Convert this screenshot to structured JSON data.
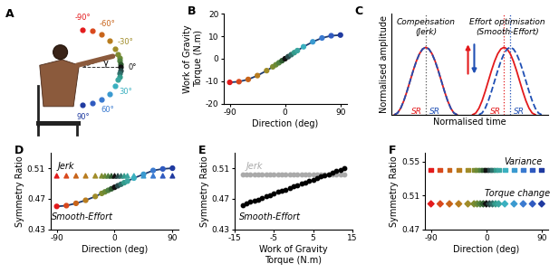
{
  "chart_data": [
    {
      "panel": "A",
      "type": "direction_diagram",
      "x": [
        -90,
        -75,
        -60,
        -45,
        -30,
        -20,
        -15,
        -10,
        -5,
        0,
        5,
        10,
        15,
        20,
        30,
        45,
        60,
        75,
        90
      ],
      "colors": [
        "#e31a1c",
        "#d9481c",
        "#c8641a",
        "#b87c1e",
        "#a08c28",
        "#7f8c30",
        "#6a8a36",
        "#4f8040",
        "#2f5a30",
        "#111111",
        "#2a4a4a",
        "#2f6f6a",
        "#339c8c",
        "#3aa6a0",
        "#3ab0c0",
        "#3a9ad0",
        "#3a7ad0",
        "#2f5ac0",
        "#1f3aa0"
      ],
      "direction_labels": [
        {
          "value": -90,
          "label": "-90°"
        },
        {
          "value": -60,
          "label": "-60°"
        },
        {
          "value": -30,
          "label": "-30°"
        },
        {
          "value": 0,
          "label": "0°"
        },
        {
          "value": 30,
          "label": "30°"
        },
        {
          "value": 60,
          "label": "60°"
        },
        {
          "value": 90,
          "label": "90°"
        }
      ],
      "angle_label": "γ"
    },
    {
      "panel": "B",
      "type": "line",
      "x": [
        -90,
        -75,
        -60,
        -45,
        -30,
        -20,
        -15,
        -10,
        -5,
        0,
        5,
        10,
        15,
        20,
        30,
        45,
        60,
        75,
        90
      ],
      "series": [
        {
          "values": [
            -10.5,
            -10.2,
            -9.2,
            -7.5,
            -5.3,
            -3.6,
            -2.7,
            -1.8,
            -0.9,
            0,
            0.9,
            1.8,
            2.7,
            3.6,
            5.3,
            7.5,
            9.2,
            10.2,
            10.5
          ],
          "colors": [
            "#e31a1c",
            "#d9481c",
            "#c8641a",
            "#b87c1e",
            "#a08c28",
            "#7f8c30",
            "#6a8a36",
            "#4f8040",
            "#2f5a30",
            "#111111",
            "#2a4a4a",
            "#2f6f6a",
            "#339c8c",
            "#3aa6a0",
            "#3ab0c0",
            "#3a9ad0",
            "#3a7ad0",
            "#2f5ac0",
            "#1f3aa0"
          ],
          "color": "#1f3a6e",
          "marker": "o",
          "line_style": "solid"
        }
      ],
      "xlabel": "Direction (deg)",
      "ylabel": "Work of Gravity\nTorque (N.m)",
      "xlim": [
        -100,
        100
      ],
      "xticks": [
        -90,
        0,
        90
      ],
      "ylim": [
        -20,
        20
      ],
      "yticks": [
        -20,
        -10,
        0,
        10,
        20
      ]
    },
    {
      "panel": "C",
      "type": "line",
      "tick_labels": false,
      "series": [
        {
          "x": [
            0,
            0.05,
            0.1,
            0.15,
            0.2,
            0.25,
            0.3,
            0.35,
            0.4,
            0.45,
            0.5,
            0.55,
            0.6,
            0.65,
            0.7,
            0.75,
            0.8,
            0.85,
            0.9,
            0.95,
            1.0
          ],
          "values": [
            0,
            0.0245,
            0.0955,
            0.2061,
            0.3455,
            0.5,
            0.6545,
            0.7939,
            0.9045,
            0.9755,
            1,
            0.9755,
            0.9045,
            0.7939,
            0.6545,
            0.5,
            0.3455,
            0.2061,
            0.0955,
            0.0245,
            0
          ],
          "color": "#e31a1c",
          "line_style": "solid"
        },
        {
          "x": [
            0,
            0.05,
            0.1,
            0.15,
            0.2,
            0.25,
            0.3,
            0.35,
            0.4,
            0.45,
            0.5,
            0.55,
            0.6,
            0.65,
            0.7,
            0.75,
            0.8,
            0.85,
            0.9,
            0.95,
            1.0
          ],
          "values": [
            0,
            0.0245,
            0.0955,
            0.2061,
            0.3455,
            0.5,
            0.6545,
            0.7939,
            0.9045,
            0.9755,
            1,
            0.9755,
            0.9045,
            0.7939,
            0.6545,
            0.5,
            0.3455,
            0.2061,
            0.0955,
            0.0245,
            0
          ],
          "color": "#1f4fb4",
          "line_style": "dashed"
        },
        {
          "x": [
            1.25,
            1.3,
            1.35,
            1.4,
            1.45,
            1.5,
            1.55,
            1.6,
            1.65,
            1.7,
            1.75,
            1.8,
            1.85,
            1.9,
            1.95,
            2.0,
            2.05,
            2.1,
            2.15,
            2.2,
            2.25
          ],
          "values": [
            0,
            0.0245,
            0.0955,
            0.2061,
            0.3455,
            0.5,
            0.6545,
            0.7939,
            0.9045,
            0.9755,
            1,
            0.9755,
            0.9045,
            0.7939,
            0.6545,
            0.5,
            0.3455,
            0.2061,
            0.0955,
            0.0245,
            0
          ],
          "color": "#e31a1c",
          "line_style": "solid"
        },
        {
          "x": [
            1.35,
            1.4,
            1.45,
            1.5,
            1.55,
            1.6,
            1.65,
            1.7,
            1.75,
            1.8,
            1.85,
            1.9,
            1.95,
            2.0,
            2.05,
            2.1,
            2.15,
            2.2,
            2.25,
            2.3,
            2.35
          ],
          "values": [
            0,
            0.0245,
            0.0955,
            0.2061,
            0.3455,
            0.5,
            0.6545,
            0.7939,
            0.9045,
            0.9755,
            1,
            0.9755,
            0.9045,
            0.7939,
            0.6545,
            0.5,
            0.3455,
            0.2061,
            0.0955,
            0.0245,
            0
          ],
          "color": "#1f4fb4",
          "line_style": "dashed"
        }
      ],
      "sr_lines": [
        {
          "x": 0.5,
          "color": "#555555"
        },
        {
          "x": 1.75,
          "color": "#e31a1c"
        },
        {
          "x": 1.85,
          "color": "#1f4fb4"
        }
      ],
      "annotations": [
        {
          "text": "Compensation\n(Jerk)",
          "x": 0.5,
          "y": 1.3
        },
        {
          "text": "Effort optimisation\n(Smooth-Effort)",
          "x": 1.8,
          "y": 1.3
        },
        {
          "text": "SR",
          "x": 0.36,
          "y": 0.05,
          "color": "#e31a1c"
        },
        {
          "text": "SR",
          "x": 0.64,
          "y": 0.05,
          "color": "#1f4fb4"
        },
        {
          "text": "SR",
          "x": 1.61,
          "y": 0.05,
          "color": "#e31a1c"
        },
        {
          "text": "SR",
          "x": 1.99,
          "y": 0.05,
          "color": "#1f4fb4"
        }
      ],
      "xlabel": "Normalised time",
      "ylabel": "Normalised amplitude",
      "xlim": [
        -0.05,
        2.45
      ],
      "ylim": [
        0,
        1.5
      ]
    },
    {
      "panel": "D",
      "type": "scatter",
      "x": [
        -90,
        -75,
        -60,
        -45,
        -30,
        -20,
        -15,
        -10,
        -5,
        0,
        5,
        10,
        15,
        20,
        30,
        45,
        60,
        75,
        90
      ],
      "series": [
        {
          "values": [
            0.5,
            0.5,
            0.5,
            0.5,
            0.5,
            0.5,
            0.5,
            0.5,
            0.5,
            0.5,
            0.5,
            0.5,
            0.5,
            0.5,
            0.5,
            0.5,
            0.5,
            0.5,
            0.5
          ],
          "colors": [
            "#e31a1c",
            "#d9481c",
            "#c8641a",
            "#b87c1e",
            "#a08c28",
            "#7f8c30",
            "#6a8a36",
            "#4f8040",
            "#2f5a30",
            "#111111",
            "#2a4a4a",
            "#2f6f6a",
            "#339c8c",
            "#3aa6a0",
            "#3ab0c0",
            "#3a9ad0",
            "#3a7ad0",
            "#2f5ac0",
            "#1f3aa0"
          ],
          "marker": "^"
        },
        {
          "values": [
            0.46,
            0.461,
            0.464,
            0.468,
            0.473,
            0.477,
            0.479,
            0.481,
            0.483,
            0.485,
            0.487,
            0.489,
            0.491,
            0.493,
            0.497,
            0.502,
            0.507,
            0.509,
            0.51
          ],
          "colors": [
            "#e31a1c",
            "#d9481c",
            "#c8641a",
            "#b87c1e",
            "#a08c28",
            "#7f8c30",
            "#6a8a36",
            "#4f8040",
            "#2f5a30",
            "#111111",
            "#2a4a4a",
            "#2f6f6a",
            "#339c8c",
            "#3aa6a0",
            "#3ab0c0",
            "#3a9ad0",
            "#3a7ad0",
            "#2f5ac0",
            "#1f3aa0"
          ],
          "color": "#1f3a6e",
          "marker": "o",
          "line_style": "solid"
        }
      ],
      "annotations": [
        {
          "text": "Jerk",
          "x": -75,
          "y": 0.512
        },
        {
          "text": "Smooth-Effort",
          "x": -50,
          "y": 0.446
        }
      ],
      "xlabel": "Direction (deg)",
      "ylabel": "Symmetry Ratio",
      "xlim": [
        -100,
        100
      ],
      "xticks": [
        -90,
        0,
        90
      ],
      "ylim": [
        0.43,
        0.53
      ],
      "yticks": [
        0.43,
        0.47,
        0.51
      ]
    },
    {
      "panel": "E",
      "type": "scatter",
      "x": [
        -13,
        -12,
        -11,
        -10,
        -9,
        -8,
        -7,
        -6,
        -5,
        -4,
        -3,
        -2,
        -1,
        0,
        1,
        2,
        3,
        4,
        5,
        6,
        7,
        8,
        9,
        10,
        11,
        12,
        13
      ],
      "series": [
        {
          "values": [
            0.502,
            0.502,
            0.502,
            0.502,
            0.502,
            0.502,
            0.502,
            0.502,
            0.502,
            0.502,
            0.502,
            0.502,
            0.502,
            0.502,
            0.502,
            0.502,
            0.502,
            0.502,
            0.502,
            0.502,
            0.502,
            0.502,
            0.502,
            0.502,
            0.502,
            0.502,
            0.502
          ],
          "color": "#aaaaaa",
          "marker": "o"
        },
        {
          "values": [
            0.462,
            0.464,
            0.466,
            0.468,
            0.469,
            0.471,
            0.473,
            0.475,
            0.477,
            0.479,
            0.48,
            0.482,
            0.484,
            0.486,
            0.488,
            0.49,
            0.491,
            0.493,
            0.495,
            0.497,
            0.499,
            0.501,
            0.502,
            0.504,
            0.506,
            0.508,
            0.51
          ],
          "color": "#000000",
          "marker": "o"
        }
      ],
      "annotations": [
        {
          "text": "Jerk",
          "x": -10,
          "y": 0.512,
          "color": "#aaaaaa"
        },
        {
          "text": "Smooth-Effort",
          "x": -6,
          "y": 0.446
        }
      ],
      "xlabel": "Work of Gravity\nTorque (N.m)",
      "ylabel": "Symmetry Ratio",
      "xlim": [
        -15,
        15
      ],
      "xticks": [
        -15,
        -5,
        5,
        15
      ],
      "ylim": [
        0.43,
        0.53
      ],
      "yticks": [
        0.43,
        0.47,
        0.51
      ]
    },
    {
      "panel": "F",
      "type": "scatter",
      "x": [
        -90,
        -75,
        -60,
        -45,
        -30,
        -20,
        -15,
        -10,
        -5,
        0,
        5,
        10,
        15,
        20,
        30,
        45,
        60,
        75,
        90
      ],
      "series": [
        {
          "values": [
            0.54,
            0.54,
            0.54,
            0.54,
            0.54,
            0.54,
            0.54,
            0.54,
            0.54,
            0.54,
            0.54,
            0.54,
            0.54,
            0.54,
            0.54,
            0.54,
            0.54,
            0.54,
            0.54
          ],
          "colors": [
            "#e31a1c",
            "#d9481c",
            "#c8641a",
            "#b87c1e",
            "#a08c28",
            "#7f8c30",
            "#6a8a36",
            "#4f8040",
            "#2f5a30",
            "#111111",
            "#2a4a4a",
            "#2f6f6a",
            "#339c8c",
            "#3aa6a0",
            "#3ab0c0",
            "#3a9ad0",
            "#3a7ad0",
            "#2f5ac0",
            "#1f3aa0"
          ],
          "marker": "s"
        },
        {
          "values": [
            0.5,
            0.5,
            0.5,
            0.5,
            0.5,
            0.5,
            0.5,
            0.5,
            0.5,
            0.5,
            0.5,
            0.5,
            0.5,
            0.5,
            0.5,
            0.5,
            0.5,
            0.5,
            0.5
          ],
          "colors": [
            "#e31a1c",
            "#d9481c",
            "#c8641a",
            "#b87c1e",
            "#a08c28",
            "#7f8c30",
            "#6a8a36",
            "#4f8040",
            "#2f5a30",
            "#111111",
            "#2a4a4a",
            "#2f6f6a",
            "#339c8c",
            "#3aa6a0",
            "#3ab0c0",
            "#3a9ad0",
            "#3a7ad0",
            "#2f5ac0",
            "#1f3aa0"
          ],
          "marker": "D"
        }
      ],
      "annotations": [
        {
          "text": "Variance",
          "x": 60,
          "y": 0.549
        },
        {
          "text": "Torque change",
          "x": 50,
          "y": 0.512
        }
      ],
      "xlabel": "Direction (deg)",
      "ylabel": "Symmetry Ratio",
      "xlim": [
        -100,
        100
      ],
      "xticks": [
        -90,
        0,
        90
      ],
      "ylim": [
        0.47,
        0.56
      ],
      "yticks": [
        0.47,
        0.51,
        0.55
      ]
    }
  ]
}
